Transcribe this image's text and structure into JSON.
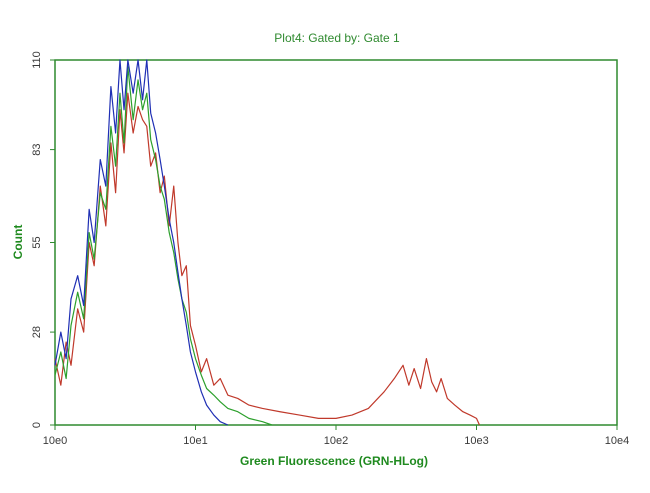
{
  "chart_data": {
    "type": "line",
    "title": "Plot4:  Gated by: Gate 1",
    "xlabel": "Green Fluorescence (GRN-HLog)",
    "ylabel": "Count",
    "x_scale": "log",
    "xlim": [
      1,
      10000
    ],
    "ylim": [
      0,
      110
    ],
    "x_ticks": [
      {
        "value": 1,
        "label": "10e0"
      },
      {
        "value": 10,
        "label": "10e1"
      },
      {
        "value": 100,
        "label": "10e2"
      },
      {
        "value": 1000,
        "label": "10e3"
      },
      {
        "value": 10000,
        "label": "10e4"
      }
    ],
    "y_ticks": [
      {
        "value": 0,
        "label": "0"
      },
      {
        "value": 28,
        "label": "28"
      },
      {
        "value": 55,
        "label": "55"
      },
      {
        "value": 83,
        "label": "83"
      },
      {
        "value": 110,
        "label": "110"
      }
    ],
    "grid": false,
    "legend": "none",
    "series": [
      {
        "color": "#c0392b",
        "x": [
          1.0,
          1.1,
          1.2,
          1.3,
          1.45,
          1.6,
          1.75,
          1.9,
          2.1,
          2.3,
          2.5,
          2.7,
          2.9,
          3.1,
          3.3,
          3.6,
          3.9,
          4.2,
          4.5,
          4.8,
          5.2,
          5.6,
          6.0,
          6.5,
          7.0,
          7.5,
          8.0,
          8.6,
          9.2,
          10.0,
          11.0,
          12.0,
          13.5,
          15.0,
          17.0,
          20.0,
          24.0,
          30.0,
          40.0,
          55.0,
          75.0,
          100.0,
          130.0,
          170.0,
          220.0,
          260.0,
          300.0,
          330.0,
          360.0,
          400.0,
          440.0,
          480.0,
          520.0,
          560.0,
          620.0,
          700.0,
          800.0,
          900.0,
          1000.0,
          1050.0
        ],
        "values": [
          20,
          12,
          25,
          18,
          35,
          28,
          55,
          48,
          72,
          60,
          85,
          70,
          95,
          82,
          100,
          88,
          96,
          92,
          90,
          78,
          82,
          70,
          75,
          60,
          72,
          55,
          45,
          48,
          30,
          24,
          16,
          20,
          12,
          14,
          9,
          8,
          6,
          5,
          4,
          3,
          2,
          2,
          3,
          5,
          10,
          14,
          18,
          12,
          17,
          11,
          20,
          13,
          10,
          14,
          8,
          6,
          4,
          3,
          2,
          0
        ]
      },
      {
        "color": "#2ca02c",
        "x": [
          1.0,
          1.1,
          1.2,
          1.3,
          1.45,
          1.6,
          1.75,
          1.9,
          2.1,
          2.3,
          2.5,
          2.7,
          2.9,
          3.1,
          3.3,
          3.6,
          3.9,
          4.2,
          4.5,
          4.8,
          5.2,
          5.6,
          6.0,
          6.5,
          7.0,
          7.5,
          8.0,
          8.6,
          9.2,
          10.0,
          11.0,
          12.0,
          13.5,
          15.0,
          17.0,
          20.0,
          24.0,
          30.0,
          35.0
        ],
        "values": [
          15,
          22,
          14,
          30,
          40,
          32,
          58,
          50,
          70,
          65,
          90,
          78,
          100,
          85,
          108,
          92,
          104,
          95,
          100,
          86,
          80,
          72,
          68,
          58,
          52,
          44,
          38,
          34,
          26,
          20,
          15,
          11,
          9,
          7,
          5,
          4,
          2,
          1,
          0
        ]
      },
      {
        "color": "#1f2fb4",
        "x": [
          1.0,
          1.1,
          1.2,
          1.3,
          1.45,
          1.6,
          1.75,
          1.9,
          2.1,
          2.3,
          2.5,
          2.7,
          2.9,
          3.1,
          3.3,
          3.6,
          3.9,
          4.2,
          4.5,
          4.8,
          5.2,
          5.6,
          6.0,
          6.5,
          7.0,
          7.5,
          8.0,
          8.6,
          9.2,
          10.0,
          11.0,
          12.0,
          13.5,
          15.0,
          17.0
        ],
        "values": [
          18,
          28,
          20,
          38,
          45,
          36,
          65,
          55,
          80,
          72,
          102,
          88,
          110,
          95,
          110,
          100,
          110,
          98,
          110,
          94,
          88,
          80,
          72,
          62,
          55,
          46,
          38,
          30,
          22,
          16,
          10,
          6,
          3,
          1,
          0
        ]
      }
    ]
  }
}
